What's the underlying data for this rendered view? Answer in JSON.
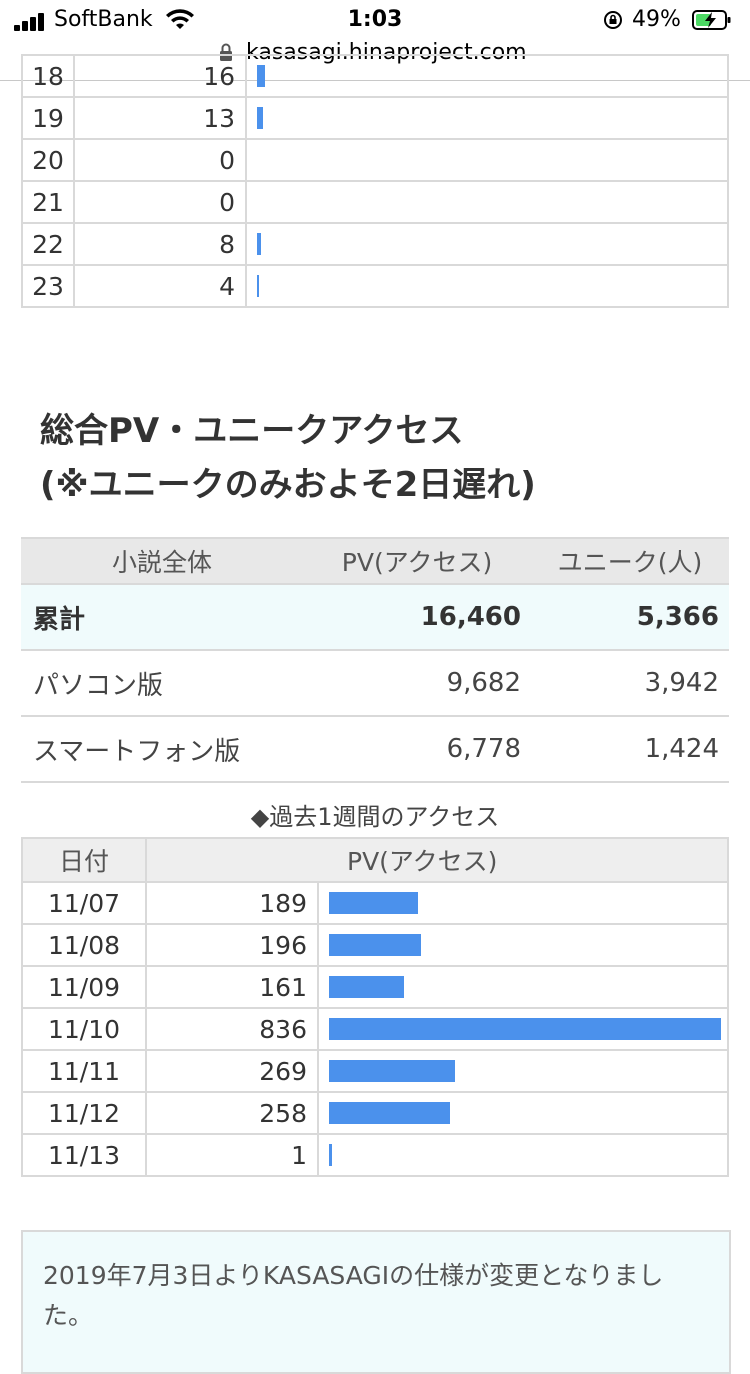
{
  "status_bar": {
    "carrier": "SoftBank",
    "time": "1:03",
    "battery_percent": "49%",
    "icons": [
      "signal-icon",
      "wifi-icon",
      "rotation-lock-icon",
      "battery-charging-icon"
    ]
  },
  "browser": {
    "url": "kasasagi.hinaproject.com",
    "icon": "lock-icon"
  },
  "hourly_rows": [
    {
      "hour": "18",
      "value": "16",
      "max": 836
    },
    {
      "hour": "19",
      "value": "13",
      "max": 836
    },
    {
      "hour": "20",
      "value": "0",
      "max": 836
    },
    {
      "hour": "21",
      "value": "0",
      "max": 836
    },
    {
      "hour": "22",
      "value": "8",
      "max": 836
    },
    {
      "hour": "23",
      "value": "4",
      "max": 836
    }
  ],
  "total_section": {
    "title_line1": "総合PV・ユニークアクセス",
    "title_line2": "(※ユニークのみおよそ2日遅れ)",
    "headers": [
      "小説全体",
      "PV(アクセス)",
      "ユニーク(人)"
    ],
    "rows": [
      {
        "label": "累計",
        "pv": "16,460",
        "unique": "5,366"
      },
      {
        "label": "パソコン版",
        "pv": "9,682",
        "unique": "3,942"
      },
      {
        "label": "スマートフォン版",
        "pv": "6,778",
        "unique": "1,424"
      }
    ]
  },
  "weekly_section": {
    "caption": "◆過去1週間のアクセス",
    "headers": [
      "日付",
      "PV(アクセス)"
    ],
    "rows": [
      {
        "date": "11/07",
        "pv": "189"
      },
      {
        "date": "11/08",
        "pv": "196"
      },
      {
        "date": "11/09",
        "pv": "161"
      },
      {
        "date": "11/10",
        "pv": "836"
      },
      {
        "date": "11/11",
        "pv": "269"
      },
      {
        "date": "11/12",
        "pv": "258"
      },
      {
        "date": "11/13",
        "pv": "1"
      }
    ],
    "bar_max": 836
  },
  "notice": {
    "text": "2019年7月3日よりKASASAGIの仕様が変更となりました。"
  },
  "colors": {
    "bar": "#4b91ec",
    "highlight_row": "#f0fbfc",
    "header_bg": "#e8e8e8"
  }
}
